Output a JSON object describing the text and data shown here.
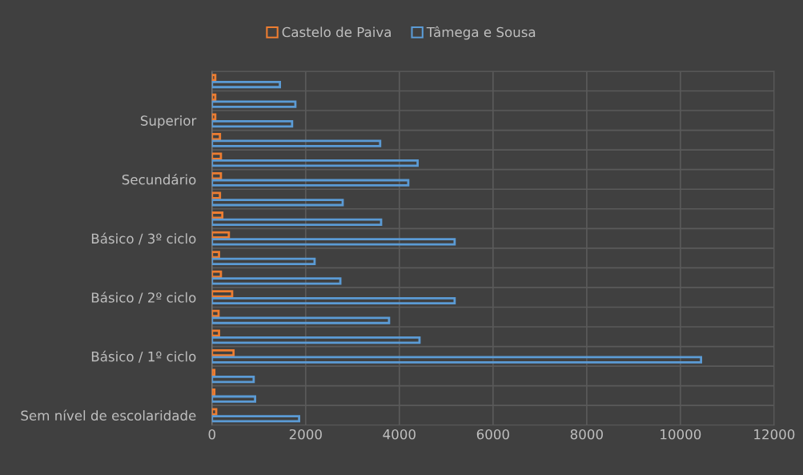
{
  "chart_data": {
    "type": "bar",
    "orientation": "horizontal",
    "categories": [
      null,
      null,
      "Superior",
      null,
      null,
      "Secundário",
      null,
      null,
      "Básico / 3º ciclo",
      null,
      null,
      "Básico / 2º ciclo",
      null,
      null,
      "Básico / 1º ciclo",
      null,
      null,
      "Sem nível de escolaridade"
    ],
    "series": [
      {
        "name": "Castelo de Paiva",
        "color": "#ed7d31",
        "values": [
          70,
          70,
          70,
          170,
          190,
          190,
          170,
          220,
          360,
          150,
          190,
          430,
          140,
          150,
          460,
          50,
          50,
          90
        ]
      },
      {
        "name": "Tâmega e Sousa",
        "color": "#5b9bd5",
        "values": [
          1450,
          1780,
          1710,
          3590,
          4390,
          4190,
          2790,
          3610,
          5180,
          2190,
          2740,
          5180,
          3780,
          4430,
          10440,
          890,
          920,
          1860
        ]
      }
    ],
    "xlim": [
      0,
      12000
    ],
    "xticks": [
      0,
      2000,
      4000,
      6000,
      8000,
      10000,
      12000
    ],
    "grid": true,
    "legend": "top"
  }
}
